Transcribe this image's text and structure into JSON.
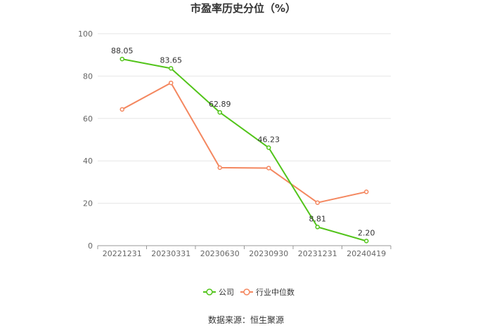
{
  "chart_data": {
    "type": "line",
    "title": "市盈率历史分位（%）",
    "categories": [
      "20221231",
      "20230331",
      "20230630",
      "20230930",
      "20231231",
      "20240419"
    ],
    "ylim": [
      0,
      100
    ],
    "yticks": [
      "0",
      "20",
      "40",
      "60",
      "80",
      "100"
    ],
    "series": [
      {
        "name": "公司",
        "color": "#52c41a",
        "values": [
          88.05,
          83.65,
          62.89,
          46.23,
          8.81,
          2.2
        ],
        "labels": [
          "88.05",
          "83.65",
          "62.89",
          "46.23",
          "8.81",
          "2.20"
        ]
      },
      {
        "name": "行业中位数",
        "color": "#f4875f",
        "values": [
          64.3,
          76.8,
          36.8,
          36.6,
          20.3,
          25.4
        ]
      }
    ],
    "grid": true,
    "legend_position": "bottom"
  },
  "source_text": "数据来源：恒生聚源"
}
